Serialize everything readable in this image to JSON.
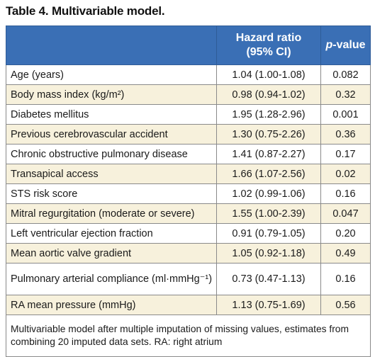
{
  "title": "Table 4. Multivariable model.",
  "header": {
    "col1": "",
    "col2_line1": "Hazard ratio",
    "col2_line2": "(95% CI)",
    "col3_italic": "p",
    "col3_rest": "-value"
  },
  "rows": [
    {
      "label": "Age (years)",
      "hr": "1.04 (1.00-1.08)",
      "p": "0.082",
      "shaded": false
    },
    {
      "label": "Body mass index (kg/m²)",
      "hr": "0.98 (0.94-1.02)",
      "p": "0.32",
      "shaded": true
    },
    {
      "label": "Diabetes mellitus",
      "hr": "1.95 (1.28-2.96)",
      "p": "0.001",
      "shaded": false
    },
    {
      "label": "Previous cerebrovascular accident",
      "hr": "1.30 (0.75-2.26)",
      "p": "0.36",
      "shaded": true
    },
    {
      "label": "Chronic obstructive pulmonary disease",
      "hr": "1.41 (0.87-2.27)",
      "p": "0.17",
      "shaded": false
    },
    {
      "label": "Transapical access",
      "hr": "1.66 (1.07-2.56)",
      "p": "0.02",
      "shaded": true
    },
    {
      "label": "STS risk score",
      "hr": "1.02 (0.99-1.06)",
      "p": "0.16",
      "shaded": false
    },
    {
      "label": "Mitral regurgitation (moderate or severe)",
      "hr": "1.55 (1.00-2.39)",
      "p": "0.047",
      "shaded": true
    },
    {
      "label": "Left ventricular ejection fraction",
      "hr": "0.91 (0.79-1.05)",
      "p": "0.20",
      "shaded": false
    },
    {
      "label": "Mean aortic valve gradient",
      "hr": "1.05 (0.92-1.18)",
      "p": "0.49",
      "shaded": true
    },
    {
      "label": "Pulmonary arterial compliance (ml·mmHg⁻¹)",
      "hr": "0.73 (0.47-1.13)",
      "p": "0.16",
      "shaded": false
    },
    {
      "label": "RA mean pressure (mmHg)",
      "hr": "1.13 (0.75-1.69)",
      "p": "0.56",
      "shaded": true
    }
  ],
  "footnote": "Multivariable model after multiple imputation of missing values, estimates from combining 20 imputed data sets. RA: right atrium",
  "colors": {
    "header_bg": "#3a6fb5",
    "shade_bg": "#f7f1dc"
  }
}
